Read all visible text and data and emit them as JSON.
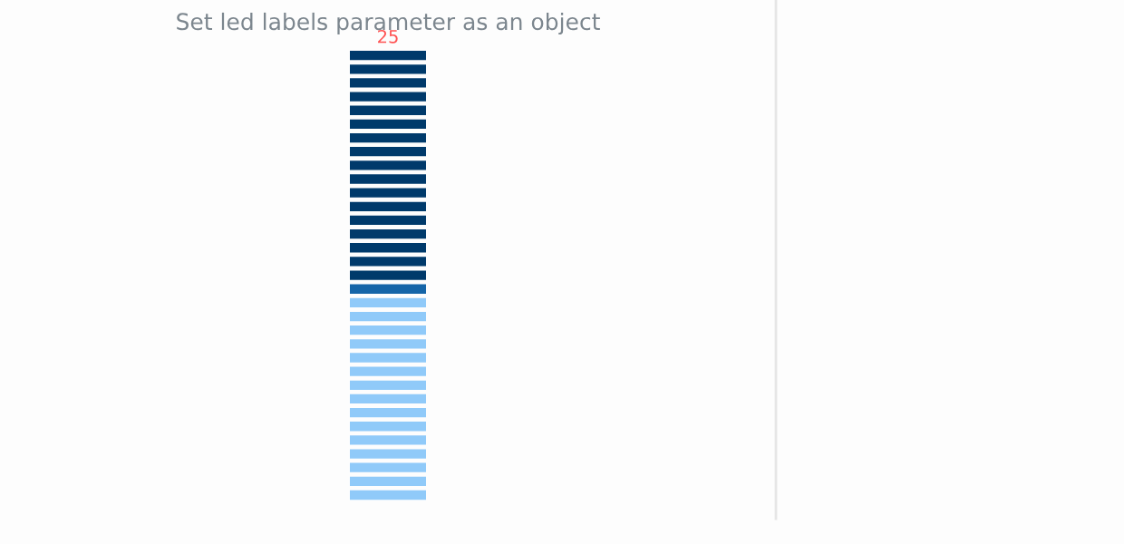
{
  "chart_data": {
    "type": "other",
    "title": "Set led labels parameter as an object",
    "values": [
      25
    ],
    "data_labels": true,
    "color": "#003a6b"
  }
}
